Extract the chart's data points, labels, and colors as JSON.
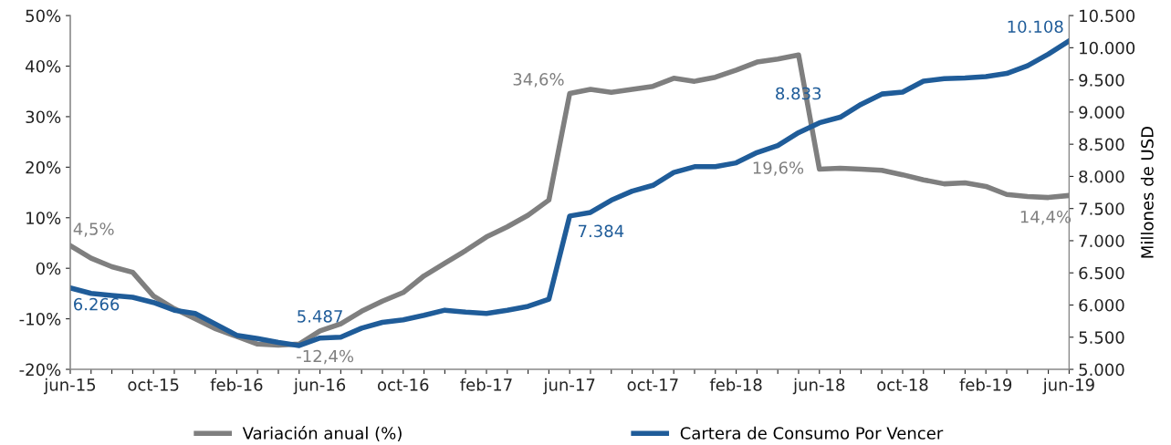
{
  "chart_data": {
    "type": "line",
    "categories": [
      "jun-15",
      null,
      null,
      null,
      "oct-15",
      null,
      null,
      null,
      "feb-16",
      null,
      null,
      null,
      "jun-16",
      null,
      null,
      null,
      "oct-16",
      null,
      null,
      null,
      "feb-17",
      null,
      null,
      null,
      "jun-17",
      null,
      null,
      null,
      "oct-17",
      null,
      null,
      null,
      "feb-18",
      null,
      null,
      null,
      "jun-18",
      null,
      null,
      null,
      "oct-18",
      null,
      null,
      null,
      "feb-19",
      null,
      null,
      null,
      "jun-19"
    ],
    "series": [
      {
        "name": "Variación anual (%)",
        "color": "#7f7f7f",
        "axis": "y",
        "values": [
          4.5,
          2.0,
          0.3,
          -0.8,
          -5.5,
          -8,
          -10,
          -12,
          -13.5,
          -15,
          -15.2,
          -15,
          -12.4,
          -11,
          -8.5,
          -6.5,
          -4.8,
          -1.5,
          1,
          3.5,
          6.2,
          8.2,
          10.5,
          13.5,
          34.6,
          35.4,
          34.8,
          35.4,
          36,
          37.6,
          37,
          37.8,
          39.2,
          40.8,
          41.4,
          42.2,
          19.6,
          19.8,
          19.6,
          19.4,
          18.5,
          17.5,
          16.7,
          16.9,
          16.2,
          14.6,
          14.2,
          14.0,
          14.4
        ],
        "value_labels": [
          "4,5%",
          null,
          null,
          null,
          null,
          null,
          null,
          null,
          null,
          null,
          null,
          null,
          "-12,4%",
          null,
          null,
          null,
          null,
          null,
          null,
          null,
          null,
          null,
          null,
          null,
          "34,6%",
          null,
          null,
          null,
          null,
          null,
          null,
          null,
          null,
          null,
          null,
          null,
          "19,6%",
          null,
          null,
          null,
          null,
          null,
          null,
          null,
          null,
          null,
          null,
          null,
          "14,4%"
        ]
      },
      {
        "name": "Cartera de Consumo Por Vencer",
        "color": "#1f5c99",
        "axis": "y2",
        "values": [
          6266,
          6180,
          6150,
          6120,
          6040,
          5920,
          5870,
          5700,
          5530,
          5480,
          5420,
          5370,
          5487,
          5500,
          5640,
          5730,
          5770,
          5840,
          5920,
          5890,
          5870,
          5920,
          5980,
          6090,
          7384,
          7440,
          7630,
          7770,
          7860,
          8060,
          8150,
          8150,
          8210,
          8370,
          8480,
          8680,
          8833,
          8920,
          9120,
          9280,
          9310,
          9480,
          9520,
          9530,
          9550,
          9600,
          9720,
          9900,
          10108
        ],
        "value_labels": [
          "6.266",
          null,
          null,
          null,
          null,
          null,
          null,
          null,
          null,
          null,
          null,
          null,
          "5.487",
          null,
          null,
          null,
          null,
          null,
          null,
          null,
          null,
          null,
          null,
          null,
          "7.384",
          null,
          null,
          null,
          null,
          null,
          null,
          null,
          null,
          null,
          null,
          null,
          "8.833",
          null,
          null,
          null,
          null,
          null,
          null,
          null,
          null,
          null,
          null,
          null,
          "10.108"
        ]
      }
    ],
    "ylim": [
      -20,
      50
    ],
    "yticks": [
      {
        "value": -20,
        "label": "-20%"
      },
      {
        "value": -10,
        "label": "-10%"
      },
      {
        "value": 0,
        "label": "0%"
      },
      {
        "value": 10,
        "label": "10%"
      },
      {
        "value": 20,
        "label": "20%"
      },
      {
        "value": 30,
        "label": "30%"
      },
      {
        "value": 40,
        "label": "40%"
      },
      {
        "value": 50,
        "label": "50%"
      }
    ],
    "y2lim": [
      5000,
      10500
    ],
    "y2ticks": [
      {
        "value": 5000,
        "label": "5.000"
      },
      {
        "value": 5500,
        "label": "5.500"
      },
      {
        "value": 6000,
        "label": "6.000"
      },
      {
        "value": 6500,
        "label": "6.500"
      },
      {
        "value": 7000,
        "label": "7.000"
      },
      {
        "value": 7500,
        "label": "7.500"
      },
      {
        "value": 8000,
        "label": "8.000"
      },
      {
        "value": 8500,
        "label": "8.500"
      },
      {
        "value": 9000,
        "label": "9.000"
      },
      {
        "value": 9500,
        "label": "9.500"
      },
      {
        "value": 10000,
        "label": "10.000"
      },
      {
        "value": 10500,
        "label": "10.500"
      }
    ],
    "y2label": "Millones de USD",
    "legend": "bottom",
    "grid": false,
    "line_style": "solid",
    "marker": "none"
  }
}
